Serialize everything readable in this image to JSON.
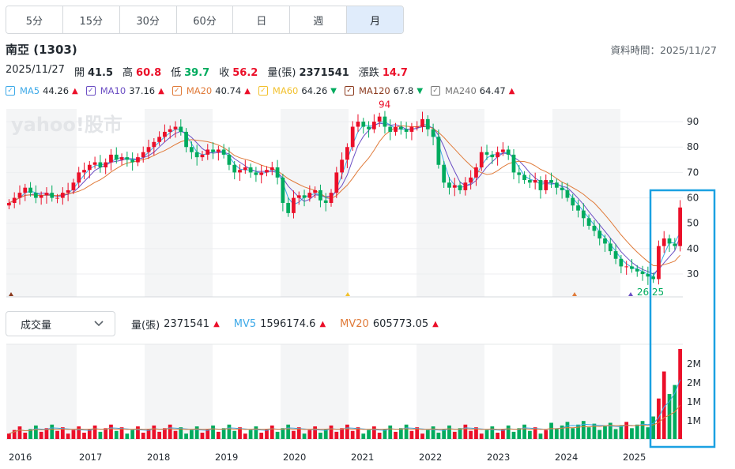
{
  "tabs": [
    {
      "label": "5分"
    },
    {
      "label": "15分"
    },
    {
      "label": "30分"
    },
    {
      "label": "60分"
    },
    {
      "label": "日"
    },
    {
      "label": "週"
    },
    {
      "label": "月",
      "active": true
    }
  ],
  "stock": {
    "name": "南亞 (1303)"
  },
  "data_time": "資料時間：2025/11/27",
  "ohlc": {
    "date": "2025/11/27",
    "open_label": "開",
    "open": "41.5",
    "high_label": "高",
    "high": "60.8",
    "low_label": "低",
    "low": "39.7",
    "close_label": "收",
    "close": "56.2",
    "volume_label": "量(張)",
    "volume": "2371541",
    "change_label": "漲跌",
    "change": "14.7"
  },
  "ma_legend": [
    {
      "name": "MA5",
      "value": "44.26",
      "dir": "up",
      "color": "#3da9e8"
    },
    {
      "name": "MA10",
      "value": "37.16",
      "dir": "up",
      "color": "#6c4fc4"
    },
    {
      "name": "MA20",
      "value": "40.74",
      "dir": "up",
      "color": "#e07b3a"
    },
    {
      "name": "MA60",
      "value": "64.26",
      "dir": "down",
      "color": "#f2c12e"
    },
    {
      "name": "MA120",
      "value": "67.8",
      "dir": "down",
      "color": "#8b3a1e"
    },
    {
      "name": "MA240",
      "value": "64.47",
      "dir": "up",
      "color": "#777777"
    }
  ],
  "watermark": "yahoo!股市",
  "volume_panel": {
    "select_label": "成交量",
    "vol_label": "量(張)",
    "vol_value": "2371541",
    "mv5_label": "MV5",
    "mv5_value": "1596174.6",
    "mv20_label": "MV20",
    "mv20_value": "605773.05"
  },
  "colors": {
    "up": "#eb0f29",
    "down": "#00ab5e",
    "highlight": "#1ba1e2"
  },
  "chart_data": {
    "type": "candlestick",
    "annotations": {
      "high": "94",
      "low": "26.25"
    },
    "price_ticks": [
      "90",
      "80",
      "70",
      "60",
      "50",
      "40",
      "30"
    ],
    "price_range": [
      21,
      95
    ],
    "volume_ticks": [
      "2M",
      "2M",
      "1M",
      "1M"
    ],
    "years": [
      "2016",
      "2017",
      "2018",
      "2019",
      "2020",
      "2021",
      "2022",
      "2023",
      "2024",
      "2025"
    ],
    "close": [
      58,
      60,
      62,
      64,
      62,
      60,
      61,
      62,
      60,
      60,
      62,
      63,
      66,
      70,
      71,
      73,
      74,
      72,
      74,
      77,
      75,
      76,
      75,
      74,
      76,
      78,
      80,
      82,
      84,
      86,
      87,
      88,
      86,
      80,
      78,
      76,
      77,
      79,
      78,
      79,
      77,
      73,
      70,
      71,
      72,
      70,
      69,
      70,
      71,
      72,
      68,
      58,
      54,
      60,
      61,
      60,
      62,
      63,
      59,
      58,
      62,
      70,
      75,
      80,
      88,
      90,
      88,
      87,
      90,
      92,
      88,
      86,
      88,
      87,
      86,
      88,
      88,
      91,
      87,
      84,
      73,
      66,
      64,
      65,
      63,
      66,
      68,
      72,
      78,
      77,
      76,
      78,
      79,
      77,
      70,
      69,
      67,
      66,
      67,
      63,
      67,
      66,
      64,
      63,
      60,
      57,
      55,
      52,
      49,
      47,
      44,
      42,
      39,
      36,
      33,
      33,
      32,
      31,
      30,
      29,
      28,
      41,
      44,
      42,
      41,
      56.2
    ]
  }
}
